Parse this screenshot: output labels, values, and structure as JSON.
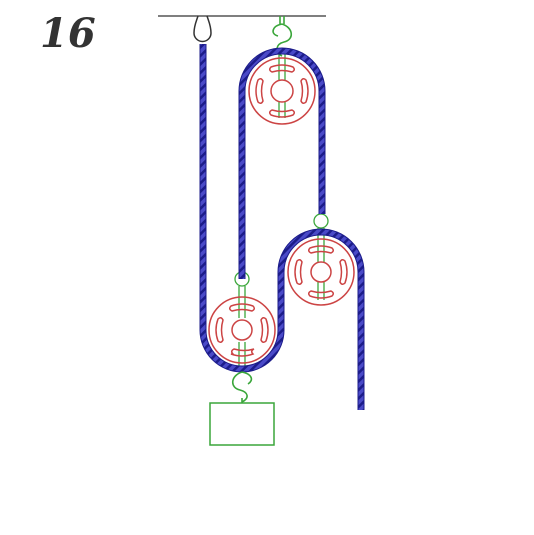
{
  "figure": {
    "number": "16"
  },
  "colors": {
    "rope": "#3535b5",
    "rope_dark": "#1c1c8a",
    "pulley": "#cc4444",
    "hardware": "#3aa63a",
    "ceiling": "#555555",
    "anchor": "#333333"
  },
  "icons": {
    "ceiling_anchor": "ring-icon",
    "top_hook": "hook-icon",
    "load_hook": "hook-icon"
  },
  "components": {
    "pulleys": [
      "fixed-top-pulley",
      "movable-lower-pulley",
      "floating-middle-pulley"
    ],
    "load": "weight-block"
  }
}
